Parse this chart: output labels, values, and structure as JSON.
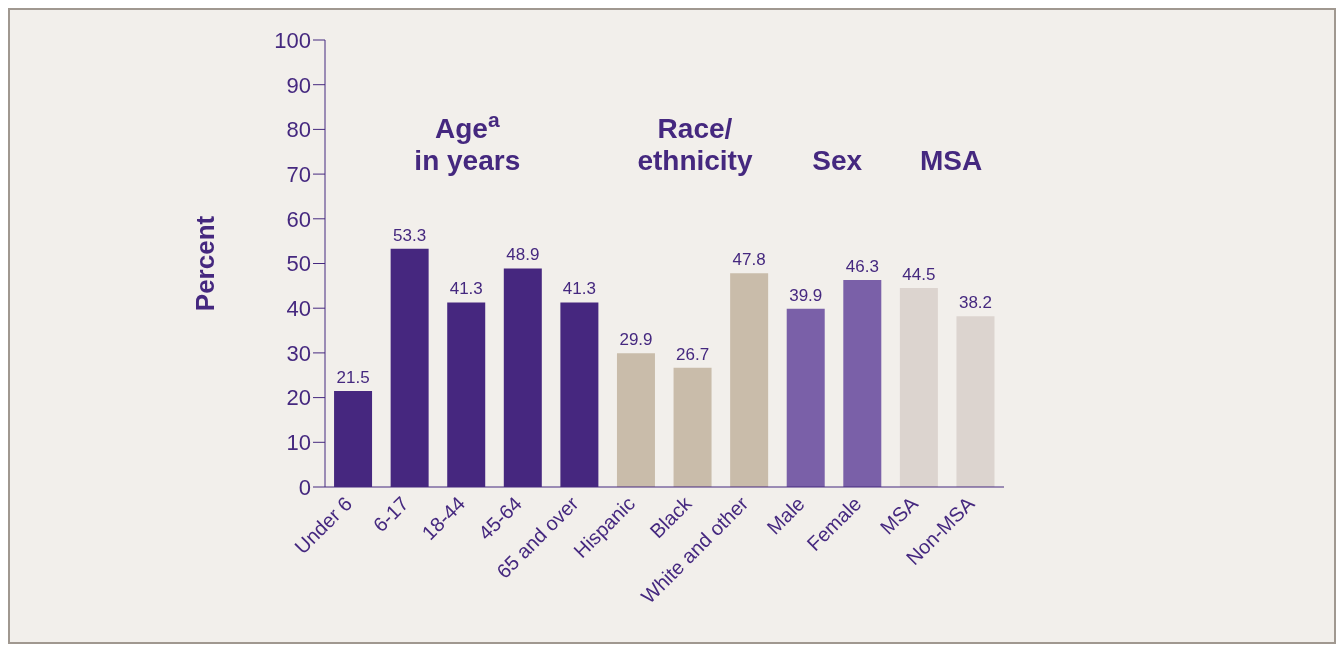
{
  "chart_data": {
    "type": "bar",
    "ylabel": "Percent",
    "categories": [
      "Under 6",
      "6-17",
      "18-44",
      "45-64",
      "65 and over",
      "Hispanic",
      "Black",
      "White and other",
      "Male",
      "Female",
      "MSA",
      "Non-MSA"
    ],
    "values": [
      21.5,
      53.3,
      41.3,
      48.9,
      41.3,
      29.9,
      26.7,
      47.8,
      39.9,
      46.3,
      44.5,
      38.2
    ],
    "colors": [
      "#46277f",
      "#46277f",
      "#46277f",
      "#46277f",
      "#46277f",
      "#c9bcaa",
      "#c9bcaa",
      "#c9bcaa",
      "#7a60a8",
      "#7a60a8",
      "#dcd4cf",
      "#dcd4cf"
    ],
    "annotations": [
      "Age$^{a}$\nin years",
      "Race/\nethnicity",
      "Sex",
      "MSA"
    ],
    "ylim": [
      0,
      100
    ],
    "yticks": [
      0,
      10,
      20,
      30,
      40,
      50,
      60,
      70,
      80,
      90,
      100
    ],
    "data_labels": true,
    "grid": false,
    "legend": false
  }
}
